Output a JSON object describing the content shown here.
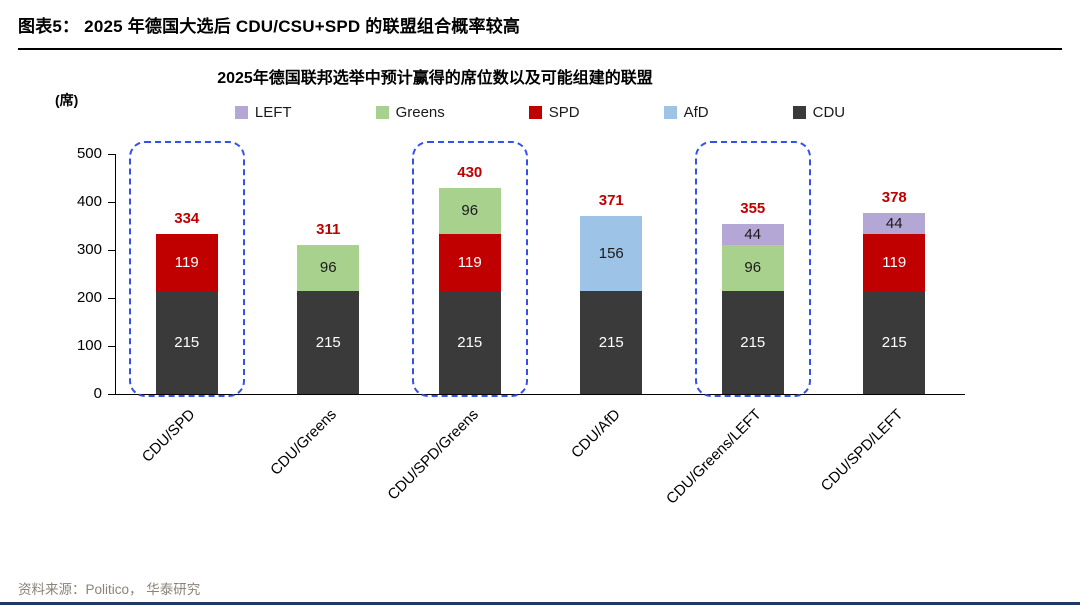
{
  "figure": {
    "title": "图表5：  2025 年德国大选后 CDU/CSU+SPD 的联盟组合概率较高",
    "source": "资料来源：Politico， 华泰研究"
  },
  "chart_data": {
    "type": "bar",
    "stacked": true,
    "title": "2025年德国联邦选举中预计赢得的席位数以及可能组建的联盟",
    "unit_label": "(席)",
    "ylim": [
      0,
      500
    ],
    "ytick_interval": 100,
    "grid": false,
    "legend_position": "top-center",
    "legend_order": [
      "LEFT",
      "Greens",
      "SPD",
      "AfD",
      "CDU"
    ],
    "categories": [
      "CDU/SPD",
      "CDU/Greens",
      "CDU/SPD/Greens",
      "CDU/AfD",
      "CDU/Greens/LEFT",
      "CDU/SPD/LEFT"
    ],
    "series": [
      {
        "name": "CDU",
        "color": "#3a3a3a",
        "label_color": "#ffffff",
        "values": [
          215,
          215,
          215,
          215,
          215,
          215
        ]
      },
      {
        "name": "SPD",
        "color": "#c00000",
        "label_color": "#ffffff",
        "values": [
          119,
          0,
          119,
          0,
          0,
          119
        ]
      },
      {
        "name": "AfD",
        "color": "#9dc3e6",
        "label_color": "#1a1a1a",
        "values": [
          0,
          0,
          0,
          156,
          0,
          0
        ]
      },
      {
        "name": "Greens",
        "color": "#a9d18e",
        "label_color": "#1a1a1a",
        "values": [
          0,
          96,
          96,
          0,
          96,
          0
        ]
      },
      {
        "name": "LEFT",
        "color": "#b4a7d6",
        "label_color": "#1a1a1a",
        "values": [
          0,
          0,
          0,
          0,
          44,
          44
        ]
      }
    ],
    "totals": [
      334,
      311,
      430,
      371,
      355,
      378
    ],
    "total_label_color": "#c00000",
    "highlighted_categories": [
      0,
      2,
      4
    ],
    "highlight_color": "#3452eb"
  }
}
